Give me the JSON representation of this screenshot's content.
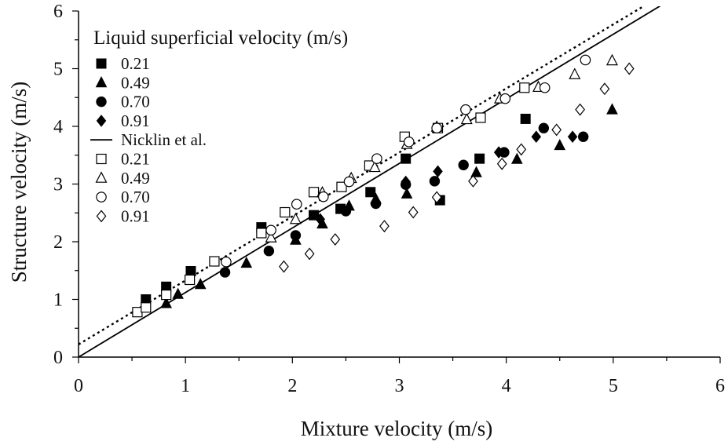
{
  "chart_data": {
    "type": "scatter",
    "xlabel": "Mixture velocity (m/s)",
    "ylabel": "Structure velocity (m/s)",
    "xlim": [
      0,
      6
    ],
    "ylim": [
      0,
      6
    ],
    "xticks": [
      "0",
      "1",
      "2",
      "3",
      "4",
      "5",
      "6"
    ],
    "yticks": [
      "0",
      "1",
      "2",
      "3",
      "4",
      "5",
      "6"
    ],
    "grid": false,
    "legend": {
      "title": "Liquid superficial velocity (m/s)",
      "placement": "top-left"
    },
    "series": [
      {
        "name": "0.21",
        "marker": "square",
        "filled": true,
        "color": "#000000",
        "points": [
          [
            0.63,
            1.0
          ],
          [
            0.82,
            1.22
          ],
          [
            1.05,
            1.49
          ],
          [
            1.71,
            2.25
          ],
          [
            2.2,
            2.46
          ],
          [
            2.45,
            2.57
          ],
          [
            2.73,
            2.86
          ],
          [
            3.06,
            3.44
          ],
          [
            3.38,
            2.72
          ],
          [
            3.75,
            3.44
          ],
          [
            4.18,
            4.13
          ]
        ]
      },
      {
        "name": "0.49",
        "marker": "triangle",
        "filled": true,
        "color": "#000000",
        "points": [
          [
            0.82,
            0.93
          ],
          [
            0.93,
            1.09
          ],
          [
            1.14,
            1.26
          ],
          [
            1.57,
            1.63
          ],
          [
            2.03,
            2.03
          ],
          [
            2.28,
            2.31
          ],
          [
            2.53,
            2.62
          ],
          [
            2.78,
            2.74
          ],
          [
            3.07,
            2.83
          ],
          [
            3.72,
            3.2
          ],
          [
            4.1,
            3.43
          ],
          [
            4.5,
            3.67
          ],
          [
            4.99,
            4.29
          ]
        ]
      },
      {
        "name": "0.70",
        "marker": "circle",
        "filled": true,
        "color": "#000000",
        "points": [
          [
            1.37,
            1.47
          ],
          [
            1.78,
            1.84
          ],
          [
            2.03,
            2.11
          ],
          [
            2.5,
            2.53
          ],
          [
            2.78,
            2.66
          ],
          [
            3.06,
            2.99
          ],
          [
            3.33,
            3.05
          ],
          [
            3.6,
            3.33
          ],
          [
            3.98,
            3.55
          ],
          [
            4.35,
            3.97
          ],
          [
            4.72,
            3.82
          ]
        ]
      },
      {
        "name": "0.91",
        "marker": "diamond",
        "filled": true,
        "color": "#000000",
        "points": [
          [
            2.26,
            2.39
          ],
          [
            3.06,
            3.04
          ],
          [
            3.36,
            3.22
          ],
          [
            3.93,
            3.55
          ],
          [
            4.28,
            3.82
          ],
          [
            4.62,
            3.82
          ]
        ]
      },
      {
        "name": "Nicklin et al.",
        "type": "line",
        "style": "solid",
        "color": "#000000",
        "points": [
          [
            0,
            0
          ],
          [
            5.45,
            6.1
          ]
        ]
      },
      {
        "name": "dotted-fit",
        "type": "line",
        "style": "dotted",
        "color": "#000000",
        "points": [
          [
            0,
            0.22
          ],
          [
            5.3,
            6.1
          ]
        ]
      },
      {
        "name": "0.21",
        "marker": "square",
        "filled": false,
        "color": "#000000",
        "points": [
          [
            0.55,
            0.78
          ],
          [
            0.63,
            0.86
          ],
          [
            0.82,
            1.08
          ],
          [
            1.04,
            1.34
          ],
          [
            1.27,
            1.66
          ],
          [
            1.71,
            2.15
          ],
          [
            1.93,
            2.51
          ],
          [
            2.2,
            2.86
          ],
          [
            2.46,
            2.95
          ],
          [
            2.72,
            3.32
          ],
          [
            3.05,
            3.82
          ],
          [
            3.36,
            3.97
          ],
          [
            3.76,
            4.15
          ],
          [
            4.17,
            4.67
          ]
        ]
      },
      {
        "name": "0.49",
        "marker": "triangle",
        "filled": false,
        "color": "#000000",
        "points": [
          [
            1.8,
            2.07
          ],
          [
            2.03,
            2.39
          ],
          [
            2.28,
            2.85
          ],
          [
            2.55,
            3.1
          ],
          [
            2.77,
            3.29
          ],
          [
            3.07,
            3.69
          ],
          [
            3.35,
            3.99
          ],
          [
            3.63,
            4.12
          ],
          [
            3.94,
            4.48
          ],
          [
            4.3,
            4.68
          ],
          [
            4.64,
            4.9
          ],
          [
            4.99,
            5.14
          ]
        ]
      },
      {
        "name": "0.70",
        "marker": "circle",
        "filled": false,
        "color": "#000000",
        "points": [
          [
            1.38,
            1.65
          ],
          [
            1.8,
            2.2
          ],
          [
            2.04,
            2.65
          ],
          [
            2.29,
            2.78
          ],
          [
            2.53,
            3.04
          ],
          [
            2.79,
            3.44
          ],
          [
            3.09,
            3.73
          ],
          [
            3.35,
            3.97
          ],
          [
            3.62,
            4.29
          ],
          [
            3.99,
            4.48
          ],
          [
            4.36,
            4.67
          ],
          [
            4.74,
            5.15
          ]
        ]
      },
      {
        "name": "0.91",
        "marker": "diamond",
        "filled": false,
        "color": "#000000",
        "points": [
          [
            1.92,
            1.57
          ],
          [
            2.16,
            1.79
          ],
          [
            2.4,
            2.04
          ],
          [
            2.86,
            2.27
          ],
          [
            3.13,
            2.51
          ],
          [
            3.35,
            2.77
          ],
          [
            3.69,
            3.05
          ],
          [
            3.96,
            3.35
          ],
          [
            4.14,
            3.6
          ],
          [
            4.47,
            3.94
          ],
          [
            4.69,
            4.29
          ],
          [
            4.92,
            4.65
          ],
          [
            5.15,
            5.0
          ]
        ]
      }
    ]
  }
}
